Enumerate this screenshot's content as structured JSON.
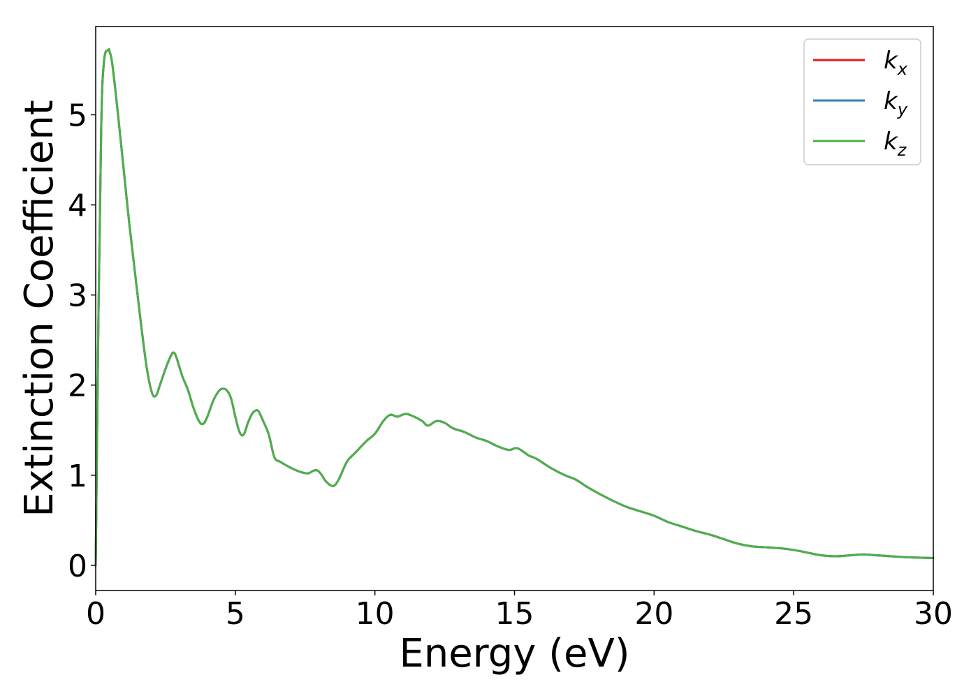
{
  "chart_data": {
    "type": "line",
    "xlabel": "Energy (eV)",
    "ylabel": "Extinction Coefficient",
    "xlim": [
      0,
      30
    ],
    "ylim": [
      -0.28,
      5.98
    ],
    "xticks": [
      0,
      5,
      10,
      15,
      20,
      25,
      30
    ],
    "yticks": [
      0,
      1,
      2,
      3,
      4,
      5
    ],
    "grid": false,
    "legend_position": "top-right",
    "legend": [
      {
        "main": "k",
        "sub": "x",
        "color": "#e41a1c"
      },
      {
        "main": "k",
        "sub": "y",
        "color": "#377eb8"
      },
      {
        "main": "k",
        "sub": "z",
        "color": "#4daf4a"
      }
    ],
    "series": [
      {
        "name": "k_x",
        "color": "#e41a1c",
        "x": [
          0,
          0.1,
          0.2,
          0.3,
          0.45,
          0.5,
          0.6,
          0.8,
          1.0,
          1.2,
          1.5,
          1.8,
          2.0,
          2.15,
          2.3,
          2.5,
          2.7,
          2.8,
          2.9,
          3.1,
          3.3,
          3.5,
          3.7,
          3.85,
          4.0,
          4.2,
          4.4,
          4.55,
          4.7,
          4.85,
          5.0,
          5.15,
          5.3,
          5.45,
          5.6,
          5.75,
          5.85,
          6.0,
          6.2,
          6.4,
          6.6,
          7.0,
          7.3,
          7.6,
          7.8,
          7.95,
          8.1,
          8.25,
          8.5,
          8.7,
          9.0,
          9.3,
          9.7,
          10.0,
          10.3,
          10.55,
          10.8,
          11.1,
          11.4,
          11.7,
          11.9,
          12.2,
          12.5,
          12.8,
          13.2,
          13.6,
          14.0,
          14.4,
          14.8,
          15.1,
          15.5,
          15.8,
          16.3,
          16.8,
          17.2,
          17.6,
          18.0,
          18.5,
          19.0,
          19.5,
          20.0,
          20.5,
          21.0,
          21.5,
          22.0,
          22.5,
          23.0,
          23.5,
          24.0,
          24.5,
          25.0,
          25.5,
          26.0,
          26.5,
          27.0,
          27.5,
          28.0,
          28.5,
          29.0,
          29.5,
          30.0
        ],
        "y": [
          0.0,
          2.8,
          4.9,
          5.6,
          5.72,
          5.7,
          5.55,
          5.0,
          4.4,
          3.8,
          3.0,
          2.25,
          1.93,
          1.88,
          2.0,
          2.18,
          2.33,
          2.36,
          2.3,
          2.1,
          1.95,
          1.75,
          1.6,
          1.57,
          1.65,
          1.82,
          1.93,
          1.96,
          1.94,
          1.85,
          1.65,
          1.48,
          1.45,
          1.58,
          1.68,
          1.72,
          1.7,
          1.6,
          1.45,
          1.2,
          1.15,
          1.08,
          1.04,
          1.02,
          1.05,
          1.05,
          1.0,
          0.93,
          0.88,
          0.95,
          1.15,
          1.25,
          1.38,
          1.46,
          1.6,
          1.67,
          1.65,
          1.68,
          1.65,
          1.6,
          1.55,
          1.6,
          1.58,
          1.52,
          1.48,
          1.42,
          1.38,
          1.32,
          1.28,
          1.3,
          1.22,
          1.18,
          1.08,
          1.0,
          0.95,
          0.87,
          0.8,
          0.72,
          0.65,
          0.6,
          0.55,
          0.48,
          0.43,
          0.38,
          0.34,
          0.29,
          0.24,
          0.21,
          0.2,
          0.19,
          0.17,
          0.14,
          0.11,
          0.1,
          0.11,
          0.12,
          0.11,
          0.1,
          0.09,
          0.085,
          0.08
        ]
      },
      {
        "name": "k_y",
        "color": "#377eb8",
        "x": [
          0,
          0.1,
          0.2,
          0.3,
          0.45,
          0.5,
          0.6,
          0.8,
          1.0,
          1.2,
          1.5,
          1.8,
          2.0,
          2.15,
          2.3,
          2.5,
          2.7,
          2.8,
          2.9,
          3.1,
          3.3,
          3.5,
          3.7,
          3.85,
          4.0,
          4.2,
          4.4,
          4.55,
          4.7,
          4.85,
          5.0,
          5.15,
          5.3,
          5.45,
          5.6,
          5.75,
          5.85,
          6.0,
          6.2,
          6.4,
          6.6,
          7.0,
          7.3,
          7.6,
          7.8,
          7.95,
          8.1,
          8.25,
          8.5,
          8.7,
          9.0,
          9.3,
          9.7,
          10.0,
          10.3,
          10.55,
          10.8,
          11.1,
          11.4,
          11.7,
          11.9,
          12.2,
          12.5,
          12.8,
          13.2,
          13.6,
          14.0,
          14.4,
          14.8,
          15.1,
          15.5,
          15.8,
          16.3,
          16.8,
          17.2,
          17.6,
          18.0,
          18.5,
          19.0,
          19.5,
          20.0,
          20.5,
          21.0,
          21.5,
          22.0,
          22.5,
          23.0,
          23.5,
          24.0,
          24.5,
          25.0,
          25.5,
          26.0,
          26.5,
          27.0,
          27.5,
          28.0,
          28.5,
          29.0,
          29.5,
          30.0
        ],
        "y": [
          0.0,
          2.8,
          4.9,
          5.6,
          5.72,
          5.7,
          5.55,
          5.0,
          4.4,
          3.8,
          3.0,
          2.25,
          1.93,
          1.88,
          2.0,
          2.18,
          2.33,
          2.36,
          2.3,
          2.1,
          1.95,
          1.75,
          1.6,
          1.57,
          1.65,
          1.82,
          1.93,
          1.96,
          1.94,
          1.85,
          1.65,
          1.48,
          1.45,
          1.58,
          1.68,
          1.72,
          1.7,
          1.6,
          1.45,
          1.2,
          1.15,
          1.08,
          1.04,
          1.02,
          1.05,
          1.05,
          1.0,
          0.93,
          0.88,
          0.95,
          1.15,
          1.25,
          1.38,
          1.46,
          1.6,
          1.67,
          1.65,
          1.68,
          1.65,
          1.6,
          1.55,
          1.6,
          1.58,
          1.52,
          1.48,
          1.42,
          1.38,
          1.32,
          1.28,
          1.3,
          1.22,
          1.18,
          1.08,
          1.0,
          0.95,
          0.87,
          0.8,
          0.72,
          0.65,
          0.6,
          0.55,
          0.48,
          0.43,
          0.38,
          0.34,
          0.29,
          0.24,
          0.21,
          0.2,
          0.19,
          0.17,
          0.14,
          0.11,
          0.1,
          0.11,
          0.12,
          0.11,
          0.1,
          0.09,
          0.085,
          0.08
        ]
      },
      {
        "name": "k_z",
        "color": "#4daf4a",
        "x": [
          0,
          0.1,
          0.2,
          0.3,
          0.45,
          0.5,
          0.6,
          0.8,
          1.0,
          1.2,
          1.5,
          1.8,
          2.0,
          2.15,
          2.3,
          2.5,
          2.7,
          2.8,
          2.9,
          3.1,
          3.3,
          3.5,
          3.7,
          3.85,
          4.0,
          4.2,
          4.4,
          4.55,
          4.7,
          4.85,
          5.0,
          5.15,
          5.3,
          5.45,
          5.6,
          5.75,
          5.85,
          6.0,
          6.2,
          6.4,
          6.6,
          7.0,
          7.3,
          7.6,
          7.8,
          7.95,
          8.1,
          8.25,
          8.5,
          8.7,
          9.0,
          9.3,
          9.7,
          10.0,
          10.3,
          10.55,
          10.8,
          11.1,
          11.4,
          11.7,
          11.9,
          12.2,
          12.5,
          12.8,
          13.2,
          13.6,
          14.0,
          14.4,
          14.8,
          15.1,
          15.5,
          15.8,
          16.3,
          16.8,
          17.2,
          17.6,
          18.0,
          18.5,
          19.0,
          19.5,
          20.0,
          20.5,
          21.0,
          21.5,
          22.0,
          22.5,
          23.0,
          23.5,
          24.0,
          24.5,
          25.0,
          25.5,
          26.0,
          26.5,
          27.0,
          27.5,
          28.0,
          28.5,
          29.0,
          29.5,
          30.0
        ],
        "y": [
          0.0,
          2.8,
          4.9,
          5.6,
          5.72,
          5.7,
          5.55,
          5.0,
          4.4,
          3.8,
          3.0,
          2.25,
          1.93,
          1.88,
          2.0,
          2.18,
          2.33,
          2.36,
          2.3,
          2.1,
          1.95,
          1.75,
          1.6,
          1.57,
          1.65,
          1.82,
          1.93,
          1.96,
          1.94,
          1.85,
          1.65,
          1.48,
          1.45,
          1.58,
          1.68,
          1.72,
          1.7,
          1.6,
          1.45,
          1.2,
          1.15,
          1.08,
          1.04,
          1.02,
          1.05,
          1.05,
          1.0,
          0.93,
          0.88,
          0.95,
          1.15,
          1.25,
          1.38,
          1.46,
          1.6,
          1.67,
          1.65,
          1.68,
          1.65,
          1.6,
          1.55,
          1.6,
          1.58,
          1.52,
          1.48,
          1.42,
          1.38,
          1.32,
          1.28,
          1.3,
          1.22,
          1.18,
          1.08,
          1.0,
          0.95,
          0.87,
          0.8,
          0.72,
          0.65,
          0.6,
          0.55,
          0.48,
          0.43,
          0.38,
          0.34,
          0.29,
          0.24,
          0.21,
          0.2,
          0.19,
          0.17,
          0.14,
          0.11,
          0.1,
          0.11,
          0.12,
          0.11,
          0.1,
          0.09,
          0.085,
          0.08
        ]
      }
    ]
  }
}
